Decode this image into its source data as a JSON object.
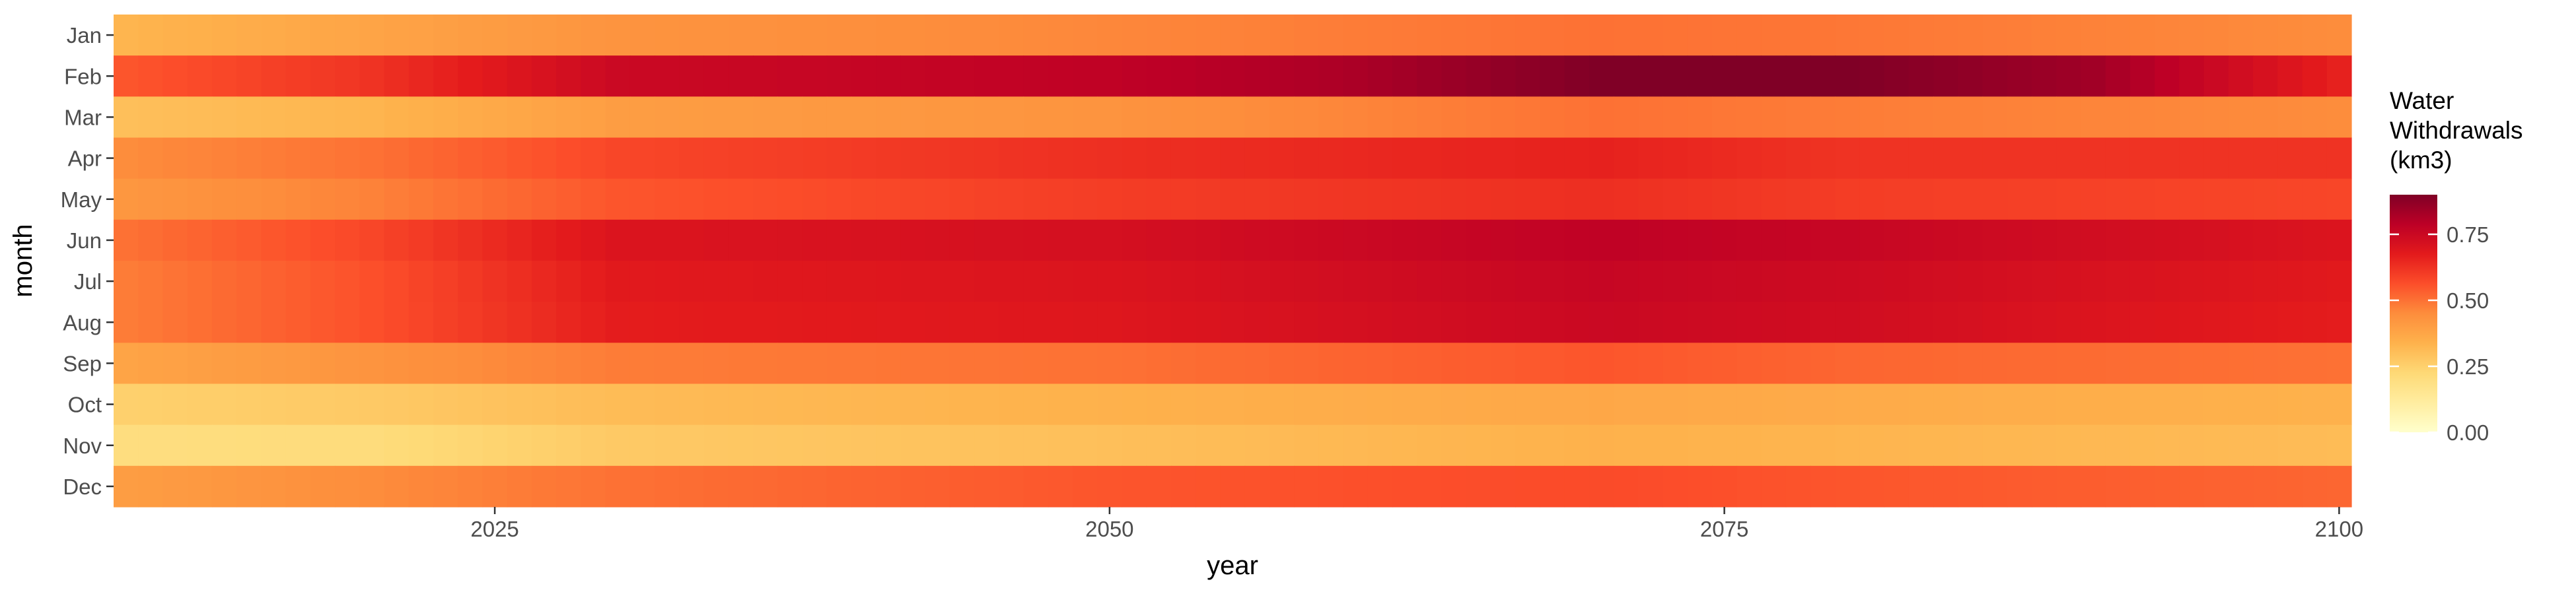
{
  "chart_data": {
    "type": "heatmap",
    "xlabel": "year",
    "ylabel": "month",
    "x_range": [
      2010,
      2100
    ],
    "x_ticks": [
      2025,
      2050,
      2075,
      2100
    ],
    "months": [
      "Jan",
      "Feb",
      "Mar",
      "Apr",
      "May",
      "Jun",
      "Jul",
      "Aug",
      "Sep",
      "Oct",
      "Nov",
      "Dec"
    ],
    "series": [
      {
        "month": "Jan",
        "anchors": [
          [
            2010,
            0.33
          ],
          [
            2020,
            0.38
          ],
          [
            2030,
            0.43
          ],
          [
            2050,
            0.46
          ],
          [
            2070,
            0.5
          ],
          [
            2080,
            0.49
          ],
          [
            2100,
            0.45
          ]
        ]
      },
      {
        "month": "Feb",
        "anchors": [
          [
            2010,
            0.55
          ],
          [
            2020,
            0.62
          ],
          [
            2030,
            0.75
          ],
          [
            2050,
            0.78
          ],
          [
            2060,
            0.82
          ],
          [
            2070,
            0.9
          ],
          [
            2080,
            0.9
          ],
          [
            2090,
            0.84
          ],
          [
            2100,
            0.66
          ]
        ]
      },
      {
        "month": "Mar",
        "anchors": [
          [
            2010,
            0.3
          ],
          [
            2020,
            0.33
          ],
          [
            2030,
            0.4
          ],
          [
            2050,
            0.43
          ],
          [
            2070,
            0.5
          ],
          [
            2080,
            0.48
          ],
          [
            2100,
            0.45
          ]
        ]
      },
      {
        "month": "Apr",
        "anchors": [
          [
            2010,
            0.45
          ],
          [
            2020,
            0.5
          ],
          [
            2030,
            0.58
          ],
          [
            2050,
            0.63
          ],
          [
            2070,
            0.66
          ],
          [
            2080,
            0.62
          ],
          [
            2100,
            0.62
          ]
        ]
      },
      {
        "month": "May",
        "anchors": [
          [
            2010,
            0.42
          ],
          [
            2020,
            0.47
          ],
          [
            2030,
            0.55
          ],
          [
            2050,
            0.6
          ],
          [
            2070,
            0.63
          ],
          [
            2080,
            0.6
          ],
          [
            2100,
            0.58
          ]
        ]
      },
      {
        "month": "Jun",
        "anchors": [
          [
            2010,
            0.5
          ],
          [
            2020,
            0.58
          ],
          [
            2030,
            0.7
          ],
          [
            2050,
            0.72
          ],
          [
            2070,
            0.78
          ],
          [
            2080,
            0.76
          ],
          [
            2100,
            0.7
          ]
        ]
      },
      {
        "month": "Jul",
        "anchors": [
          [
            2010,
            0.48
          ],
          [
            2020,
            0.56
          ],
          [
            2030,
            0.68
          ],
          [
            2050,
            0.7
          ],
          [
            2070,
            0.76
          ],
          [
            2080,
            0.74
          ],
          [
            2100,
            0.68
          ]
        ]
      },
      {
        "month": "Aug",
        "anchors": [
          [
            2010,
            0.48
          ],
          [
            2020,
            0.56
          ],
          [
            2030,
            0.67
          ],
          [
            2050,
            0.69
          ],
          [
            2070,
            0.75
          ],
          [
            2080,
            0.73
          ],
          [
            2100,
            0.67
          ]
        ]
      },
      {
        "month": "Sep",
        "anchors": [
          [
            2010,
            0.38
          ],
          [
            2020,
            0.43
          ],
          [
            2030,
            0.48
          ],
          [
            2050,
            0.5
          ],
          [
            2070,
            0.55
          ],
          [
            2080,
            0.52
          ],
          [
            2100,
            0.5
          ]
        ]
      },
      {
        "month": "Oct",
        "anchors": [
          [
            2010,
            0.25
          ],
          [
            2020,
            0.27
          ],
          [
            2030,
            0.31
          ],
          [
            2050,
            0.34
          ],
          [
            2070,
            0.37
          ],
          [
            2080,
            0.36
          ],
          [
            2100,
            0.34
          ]
        ]
      },
      {
        "month": "Nov",
        "anchors": [
          [
            2010,
            0.2
          ],
          [
            2020,
            0.21
          ],
          [
            2030,
            0.27
          ],
          [
            2050,
            0.3
          ],
          [
            2070,
            0.34
          ],
          [
            2080,
            0.33
          ],
          [
            2100,
            0.31
          ]
        ]
      },
      {
        "month": "Dec",
        "anchors": [
          [
            2010,
            0.4
          ],
          [
            2020,
            0.45
          ],
          [
            2030,
            0.5
          ],
          [
            2050,
            0.55
          ],
          [
            2070,
            0.57
          ],
          [
            2080,
            0.55
          ],
          [
            2100,
            0.52
          ]
        ]
      }
    ],
    "legend": {
      "title": [
        "Water",
        "Withdrawals",
        "(km3)"
      ],
      "ticks": [
        0.0,
        0.25,
        0.5,
        0.75
      ],
      "tick_labels": [
        "0.00",
        "0.25",
        "0.50",
        "0.75"
      ],
      "range": [
        0,
        0.9
      ],
      "placement": "right"
    },
    "colorscale": [
      "#ffffcc",
      "#ffeda0",
      "#fed976",
      "#feb24c",
      "#fd8d3c",
      "#fc4e2a",
      "#e31a1c",
      "#bd0026",
      "#800026"
    ],
    "grid": false
  }
}
